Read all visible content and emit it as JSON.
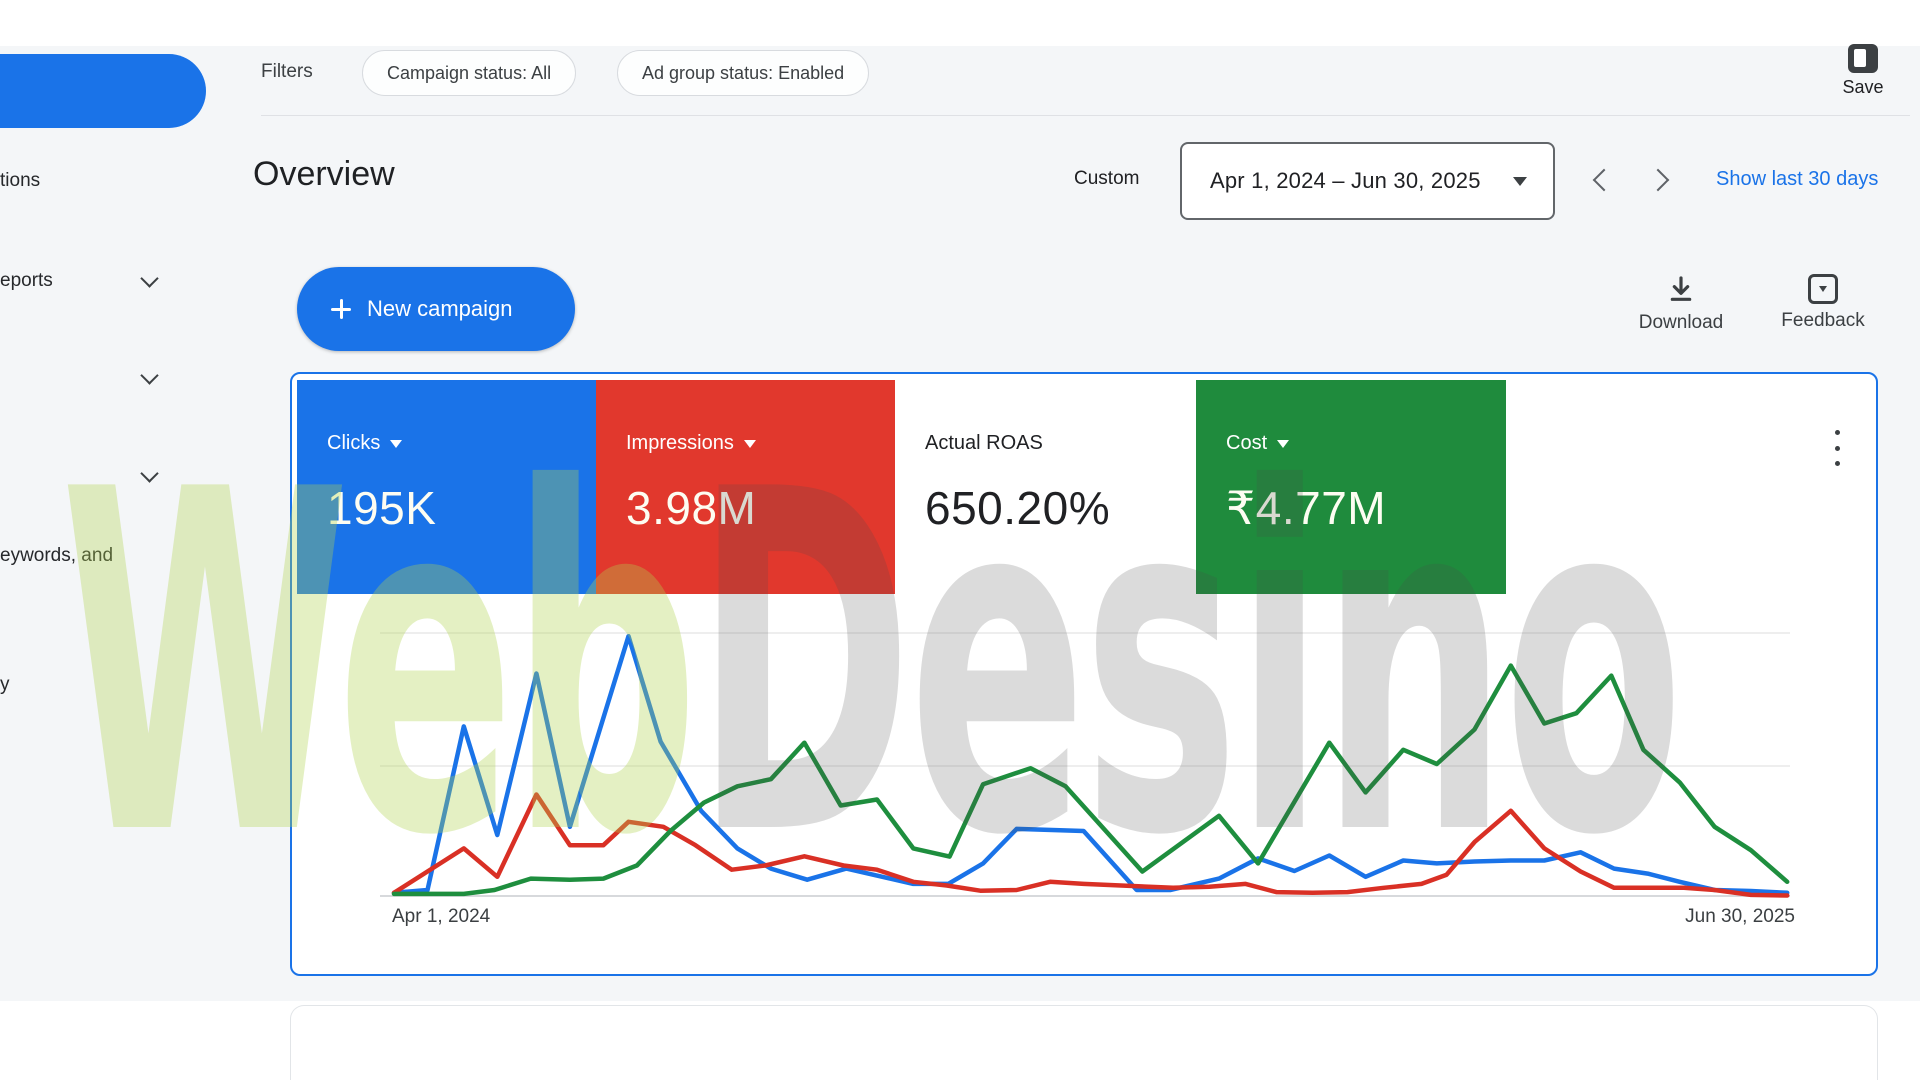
{
  "sidebar": {
    "items": [
      {
        "label": "tions"
      },
      {
        "label": "eports"
      },
      {
        "label": ""
      },
      {
        "label": ""
      },
      {
        "label": "eywords, and"
      },
      {
        "label": "y"
      }
    ]
  },
  "topbar": {
    "filters_label": "Filters",
    "chips": [
      "Campaign status: All",
      "Ad group status: Enabled"
    ],
    "save_label": "Save"
  },
  "header": {
    "title": "Overview",
    "range_type": "Custom",
    "date_range": "Apr 1, 2024 – Jun 30, 2025",
    "show_last_link": "Show last 30 days"
  },
  "actions": {
    "new_campaign_label": "New campaign",
    "download_label": "Download",
    "feedback_label": "Feedback"
  },
  "metrics": [
    {
      "label": "Clicks",
      "value": "195K",
      "color": "#1a73e8",
      "selected": true
    },
    {
      "label": "Impressions",
      "value": "3.98M",
      "color": "#e1382d",
      "selected": true
    },
    {
      "label": "Actual ROAS",
      "value": "650.20%",
      "color": "#ffffff",
      "selected": false
    },
    {
      "label": "Cost",
      "value": "₹4.77M",
      "color": "#1f8b3d",
      "selected": true
    }
  ],
  "watermark": {
    "part1": "Web",
    "part2": "Desino"
  },
  "chart_data": {
    "type": "line",
    "title": "",
    "xlabel": "",
    "ylabel": "",
    "x_start_label": "Apr 1, 2024",
    "x_end_label": "Jun 30, 2025",
    "y_axis": "normalized percent (no visible scale; 100 = top gridline)",
    "grid": "3 horizontal gridlines (0, 50, 100)",
    "legend_position": "none (colors match metric tiles)",
    "series": [
      {
        "name": "Clicks",
        "color": "#1a73e8",
        "points": [
          [
            0,
            1.2
          ],
          [
            2.4,
            2.3
          ],
          [
            5,
            64.5
          ],
          [
            7.4,
            23.2
          ],
          [
            10.2,
            84.6
          ],
          [
            12.6,
            26.3
          ],
          [
            16.8,
            98.8
          ],
          [
            19.1,
            58.7
          ],
          [
            22,
            32.4
          ],
          [
            24.6,
            18.1
          ],
          [
            27,
            10.4
          ],
          [
            29.6,
            6.2
          ],
          [
            32.4,
            10.4
          ],
          [
            37.2,
            4.6
          ],
          [
            39.7,
            4.6
          ],
          [
            42.2,
            12.4
          ],
          [
            44.6,
            25.5
          ],
          [
            49.4,
            24.7
          ],
          [
            53.2,
            2.3
          ],
          [
            55.6,
            2.3
          ],
          [
            59.1,
            6.6
          ],
          [
            61.9,
            14.3
          ],
          [
            64.5,
            9.5
          ],
          [
            67,
            15.4
          ],
          [
            69.6,
            7.3
          ],
          [
            72.3,
            13.5
          ],
          [
            74.7,
            12.4
          ],
          [
            77.4,
            13.1
          ],
          [
            80,
            13.5
          ],
          [
            82.4,
            13.5
          ],
          [
            85,
            16.6
          ],
          [
            87.4,
            10.4
          ],
          [
            89.8,
            8.5
          ],
          [
            92.1,
            5.4
          ],
          [
            94.6,
            2.3
          ],
          [
            97.2,
            1.9
          ],
          [
            99.8,
            1.2
          ]
        ]
      },
      {
        "name": "Impressions",
        "color": "#d93025",
        "points": [
          [
            0,
            1.2
          ],
          [
            5,
            18.1
          ],
          [
            7.4,
            7.3
          ],
          [
            10.2,
            38.6
          ],
          [
            12.6,
            19.3
          ],
          [
            15,
            19.3
          ],
          [
            16.8,
            28.2
          ],
          [
            19.3,
            26.3
          ],
          [
            21.6,
            19.3
          ],
          [
            24.2,
            10
          ],
          [
            26.6,
            11.6
          ],
          [
            29.4,
            15.1
          ],
          [
            32.2,
            11.6
          ],
          [
            34.6,
            10
          ],
          [
            37.2,
            5.4
          ],
          [
            39.6,
            4
          ],
          [
            42,
            2
          ],
          [
            44.6,
            2.3
          ],
          [
            47,
            5.4
          ],
          [
            49.4,
            4.6
          ],
          [
            55.8,
            3.1
          ],
          [
            58.4,
            3.5
          ],
          [
            61,
            4.6
          ],
          [
            63.2,
            1.5
          ],
          [
            65.8,
            1.2
          ],
          [
            68.3,
            1.5
          ],
          [
            70.9,
            3.1
          ],
          [
            73.6,
            4.6
          ],
          [
            75.4,
            8.1
          ],
          [
            77.4,
            20.5
          ],
          [
            80,
            32.4
          ],
          [
            82.4,
            18.1
          ],
          [
            85,
            9.3
          ],
          [
            87.4,
            3.1
          ],
          [
            89.8,
            3.1
          ],
          [
            92.4,
            3.1
          ],
          [
            94.6,
            2.3
          ],
          [
            97.2,
            0.4
          ],
          [
            99.8,
            0.2
          ]
        ]
      },
      {
        "name": "Cost",
        "color": "#1e8e3e",
        "points": [
          [
            0,
            0.8
          ],
          [
            5,
            0.8
          ],
          [
            7.2,
            2.3
          ],
          [
            9.8,
            6.6
          ],
          [
            12.6,
            6.2
          ],
          [
            15,
            6.6
          ],
          [
            17.4,
            11.6
          ],
          [
            19.8,
            24.7
          ],
          [
            22.2,
            35.5
          ],
          [
            24.6,
            41.7
          ],
          [
            27,
            44.4
          ],
          [
            29.4,
            58.3
          ],
          [
            32,
            34.4
          ],
          [
            34.6,
            36.7
          ],
          [
            37.2,
            18.1
          ],
          [
            39.8,
            15
          ],
          [
            42.2,
            42.5
          ],
          [
            45.6,
            48.6
          ],
          [
            48.1,
            41.7
          ],
          [
            53.6,
            9.3
          ],
          [
            59.1,
            30.5
          ],
          [
            61.9,
            12.4
          ],
          [
            67,
            58.3
          ],
          [
            69.6,
            39.4
          ],
          [
            72.3,
            55.6
          ],
          [
            74.7,
            50.2
          ],
          [
            77.4,
            63.3
          ],
          [
            80,
            87.6
          ],
          [
            82.4,
            65.6
          ],
          [
            84.7,
            69.5
          ],
          [
            87.2,
            83.8
          ],
          [
            89.5,
            55.6
          ],
          [
            92.1,
            43.2
          ],
          [
            94.6,
            26.3
          ],
          [
            97.2,
            17.4
          ],
          [
            99.8,
            5.4
          ]
        ]
      }
    ]
  }
}
